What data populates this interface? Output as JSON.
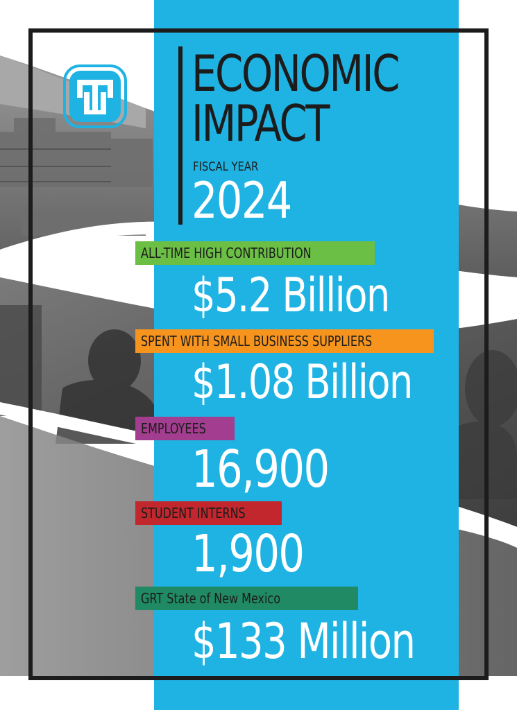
{
  "title": {
    "line1": "ECONOMIC",
    "line2": "IMPACT"
  },
  "fiscal": {
    "label": "FISCAL YEAR",
    "year": "2024"
  },
  "stats": [
    {
      "label": "ALL-TIME HIGH CONTRIBUTION",
      "value": "$5.2 Billion",
      "color": "#6bbf45"
    },
    {
      "label": "SPENT WITH SMALL BUSINESS SUPPLIERS",
      "value": "$1.08 Billion",
      "color": "#f7941d"
    },
    {
      "label": "EMPLOYEES",
      "value": "16,900",
      "color": "#a23d8f"
    },
    {
      "label": "STUDENT INTERNS",
      "value": "1,900",
      "color": "#c1272d"
    },
    {
      "label": "GRT State of New Mexico",
      "value": "$133 Million",
      "color": "#1f8a63"
    }
  ],
  "colors": {
    "accent_blue": "#1fb3e3",
    "frame": "#1c1c1c",
    "text_white": "#ffffff"
  },
  "icons": {
    "logo": "thunderbird-logo-icon"
  }
}
